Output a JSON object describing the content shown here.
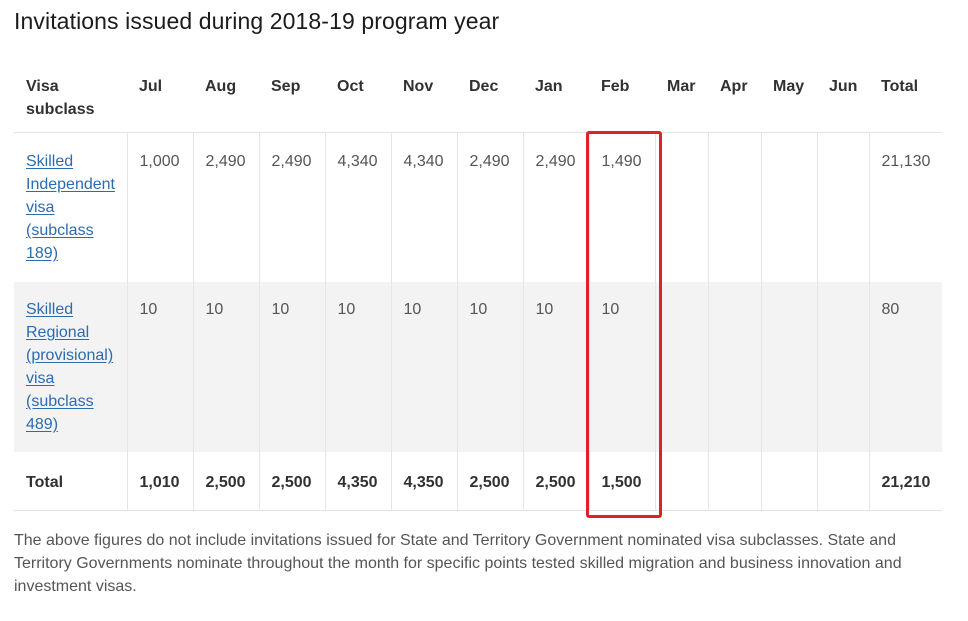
{
  "title": "Invitations issued during 2018-19 program year",
  "table": {
    "headers": {
      "visa_line1": "Visa",
      "visa_line2": "subclass",
      "months": [
        "Jul",
        "Aug",
        "Sep",
        "Oct",
        "Nov",
        "Dec",
        "Jan",
        "Feb",
        "Mar",
        "Apr",
        "May",
        "Jun"
      ],
      "total": "Total"
    },
    "rows": [
      {
        "label_lines": [
          "Skilled",
          "Independent",
          "visa",
          "(subclass",
          "189)"
        ],
        "values": [
          "1,000",
          "2,490",
          "2,490",
          "4,340",
          "4,340",
          "2,490",
          "2,490",
          "1,490",
          "",
          "",
          "",
          ""
        ],
        "total": "21,130"
      },
      {
        "label_lines": [
          "Skilled",
          "Regional",
          "(provisional)",
          "visa",
          "(subclass",
          "489)"
        ],
        "values": [
          "10",
          "10",
          "10",
          "10",
          "10",
          "10",
          "10",
          "10",
          "",
          "",
          "",
          ""
        ],
        "total": "80"
      }
    ],
    "totals": {
      "label": "Total",
      "values": [
        "1,010",
        "2,500",
        "2,500",
        "4,350",
        "4,350",
        "2,500",
        "2,500",
        "1,500",
        "",
        "",
        "",
        ""
      ],
      "total": "21,210"
    }
  },
  "note": "The above figures do not include invitations issued for State and Territory Government nominated visa subclasses. State and Territory Governments nominate throughout the month for specific points tested skilled migration and business innovation and investment visas.",
  "colors": {
    "link": "#2b6cb0",
    "highlight": "#e0202a",
    "shaded_row": "#f3f3f3"
  }
}
